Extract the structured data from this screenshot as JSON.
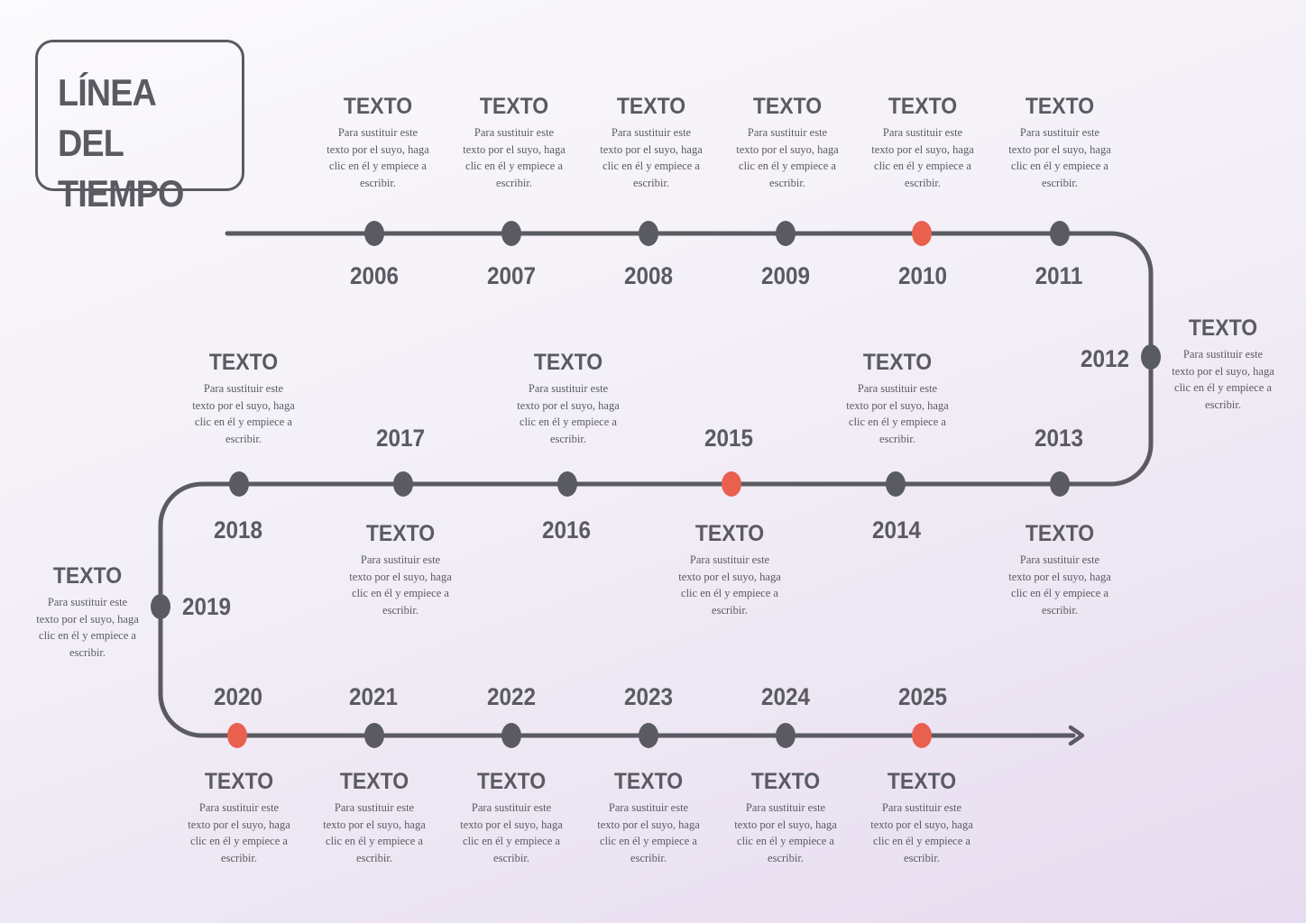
{
  "title": "LÍNEA DEL TIEMPO",
  "colors": {
    "line": "#5a5a62",
    "dot": "#5a5a62",
    "highlight": "#e9604f"
  },
  "default_heading": "TEXTO",
  "default_description": "Para sustituir este texto por el suyo, haga clic en él y empiece a escribir.",
  "events": [
    {
      "year": "2006",
      "heading": "TEXTO",
      "description": "Para sustituir este texto por el suyo, haga clic en él y empiece a escribir.",
      "highlight": false
    },
    {
      "year": "2007",
      "heading": "TEXTO",
      "description": "Para sustituir este texto por el suyo, haga clic en él y empiece a escribir.",
      "highlight": false
    },
    {
      "year": "2008",
      "heading": "TEXTO",
      "description": "Para sustituir este texto por el suyo, haga clic en él y empiece a escribir.",
      "highlight": false
    },
    {
      "year": "2009",
      "heading": "TEXTO",
      "description": "Para sustituir este texto por el suyo, haga clic en él y empiece a escribir.",
      "highlight": false
    },
    {
      "year": "2010",
      "heading": "TEXTO",
      "description": "Para sustituir este texto por el suyo, haga clic en él y empiece a escribir.",
      "highlight": true
    },
    {
      "year": "2011",
      "heading": "TEXTO",
      "description": "Para sustituir este texto por el suyo, haga clic en él y empiece a escribir.",
      "highlight": false
    },
    {
      "year": "2012",
      "heading": "TEXTO",
      "description": "Para sustituir este texto por el suyo, haga clic en él y empiece a escribir.",
      "highlight": false
    },
    {
      "year": "2013",
      "heading": "TEXTO",
      "description": "Para sustituir este texto por el suyo, haga clic en él y empiece a escribir.",
      "highlight": false
    },
    {
      "year": "2014",
      "heading": "TEXTO",
      "description": "Para sustituir este texto por el suyo, haga clic en él y empiece a escribir.",
      "highlight": false
    },
    {
      "year": "2015",
      "heading": "TEXTO",
      "description": "Para sustituir este texto por el suyo, haga clic en él y empiece a escribir.",
      "highlight": true
    },
    {
      "year": "2016",
      "heading": "TEXTO",
      "description": "Para sustituir este texto por el suyo, haga clic en él y empiece a escribir.",
      "highlight": false
    },
    {
      "year": "2017",
      "heading": "TEXTO",
      "description": "Para sustituir este texto por el suyo, haga clic en él y empiece a escribir.",
      "highlight": false
    },
    {
      "year": "2018",
      "heading": "TEXTO",
      "description": "Para sustituir este texto por el suyo, haga clic en él y empiece a escribir.",
      "highlight": false
    },
    {
      "year": "2019",
      "heading": "TEXTO",
      "description": "Para sustituir este texto por el suyo, haga clic en él y empiece a escribir.",
      "highlight": false
    },
    {
      "year": "2020",
      "heading": "TEXTO",
      "description": "Para sustituir este texto por el suyo, haga clic en él y empiece a escribir.",
      "highlight": true
    },
    {
      "year": "2021",
      "heading": "TEXTO",
      "description": "Para sustituir este texto por el suyo, haga clic en él y empiece a escribir.",
      "highlight": false
    },
    {
      "year": "2022",
      "heading": "TEXTO",
      "description": "Para sustituir este texto por el suyo, haga clic en él y empiece a escribir.",
      "highlight": false
    },
    {
      "year": "2023",
      "heading": "TEXTO",
      "description": "Para sustituir este texto por el suyo, haga clic en él y empiece a escribir.",
      "highlight": false
    },
    {
      "year": "2024",
      "heading": "TEXTO",
      "description": "Para sustituir este texto por el suyo, haga clic en él y empiece a escribir.",
      "highlight": false
    },
    {
      "year": "2025",
      "heading": "TEXTO",
      "description": "Para sustituir este texto por el suyo, haga clic en él y empiece a escribir.",
      "highlight": true
    }
  ]
}
